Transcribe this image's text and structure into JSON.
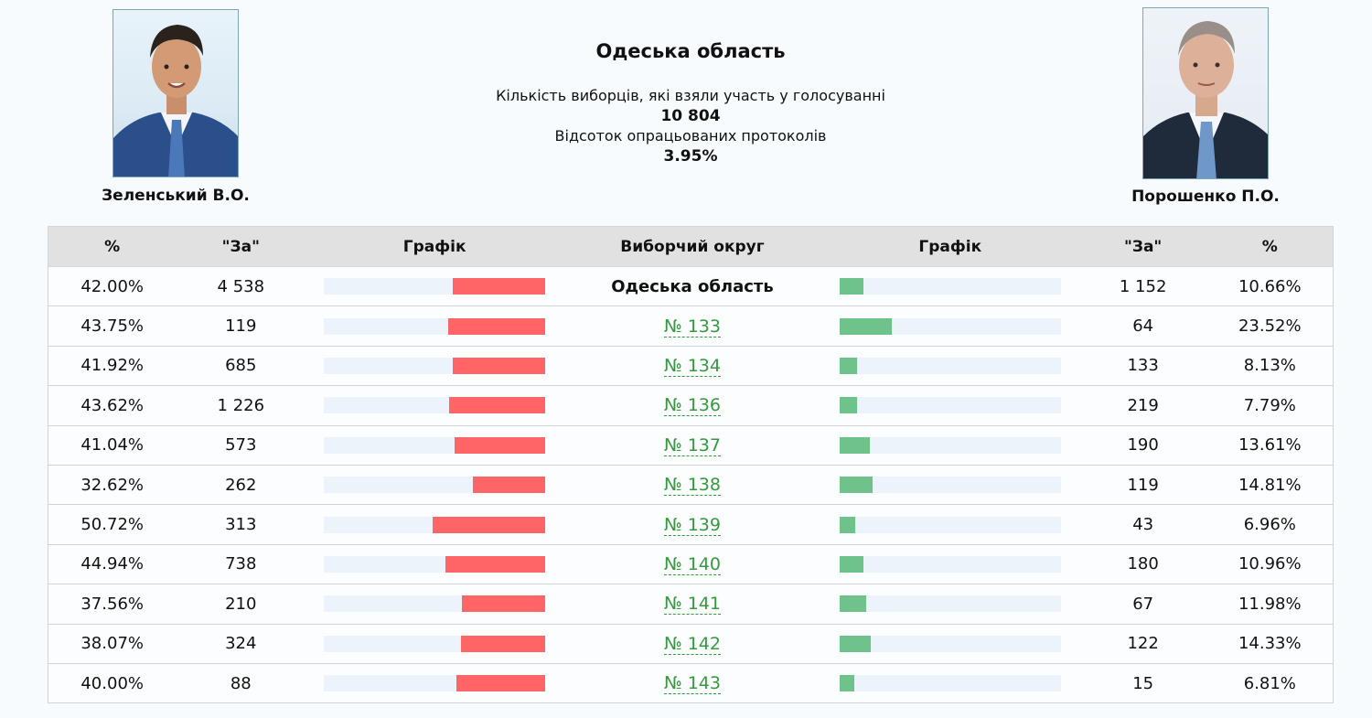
{
  "left_candidate": {
    "name": "Зеленський В.О."
  },
  "right_candidate": {
    "name": "Порошенко П.О."
  },
  "header": {
    "region": "Одеська область",
    "voters_label": "Кількість виборців, які взяли участь у голосуванні",
    "voters_value": "10 804",
    "protocols_label": "Відсоток опрацьованих протоколів",
    "protocols_value": "3.95%"
  },
  "table": {
    "columns": [
      "%",
      "\"За\"",
      "Графік",
      "Виборчий округ",
      "Графік",
      "\"За\"",
      "%"
    ],
    "rows": [
      {
        "z_pct": "42.00%",
        "z_votes": "4 538",
        "z_share": 0.42,
        "district": "Одеська область",
        "is_link": false,
        "p_share": 0.1066,
        "p_votes": "1 152",
        "p_pct": "10.66%"
      },
      {
        "z_pct": "43.75%",
        "z_votes": "119",
        "z_share": 0.4375,
        "district": "№ 133",
        "is_link": true,
        "p_share": 0.2352,
        "p_votes": "64",
        "p_pct": "23.52%"
      },
      {
        "z_pct": "41.92%",
        "z_votes": "685",
        "z_share": 0.4192,
        "district": "№ 134",
        "is_link": true,
        "p_share": 0.0813,
        "p_votes": "133",
        "p_pct": "8.13%"
      },
      {
        "z_pct": "43.62%",
        "z_votes": "1 226",
        "z_share": 0.4362,
        "district": "№ 136",
        "is_link": true,
        "p_share": 0.0779,
        "p_votes": "219",
        "p_pct": "7.79%"
      },
      {
        "z_pct": "41.04%",
        "z_votes": "573",
        "z_share": 0.4104,
        "district": "№ 137",
        "is_link": true,
        "p_share": 0.1361,
        "p_votes": "190",
        "p_pct": "13.61%"
      },
      {
        "z_pct": "32.62%",
        "z_votes": "262",
        "z_share": 0.3262,
        "district": "№ 138",
        "is_link": true,
        "p_share": 0.1481,
        "p_votes": "119",
        "p_pct": "14.81%"
      },
      {
        "z_pct": "50.72%",
        "z_votes": "313",
        "z_share": 0.5072,
        "district": "№ 139",
        "is_link": true,
        "p_share": 0.0696,
        "p_votes": "43",
        "p_pct": "6.96%"
      },
      {
        "z_pct": "44.94%",
        "z_votes": "738",
        "z_share": 0.4494,
        "district": "№ 140",
        "is_link": true,
        "p_share": 0.1096,
        "p_votes": "180",
        "p_pct": "10.96%"
      },
      {
        "z_pct": "37.56%",
        "z_votes": "210",
        "z_share": 0.3756,
        "district": "№ 141",
        "is_link": true,
        "p_share": 0.1198,
        "p_votes": "67",
        "p_pct": "11.98%"
      },
      {
        "z_pct": "38.07%",
        "z_votes": "324",
        "z_share": 0.3807,
        "district": "№ 142",
        "is_link": true,
        "p_share": 0.1433,
        "p_votes": "122",
        "p_pct": "14.33%"
      },
      {
        "z_pct": "40.00%",
        "z_votes": "88",
        "z_share": 0.4,
        "district": "№ 143",
        "is_link": true,
        "p_share": 0.0681,
        "p_votes": "15",
        "p_pct": "6.81%"
      }
    ]
  },
  "colors": {
    "z_bar": "#fe6567",
    "p_bar": "#6fc38a",
    "link": "#349a3d"
  }
}
